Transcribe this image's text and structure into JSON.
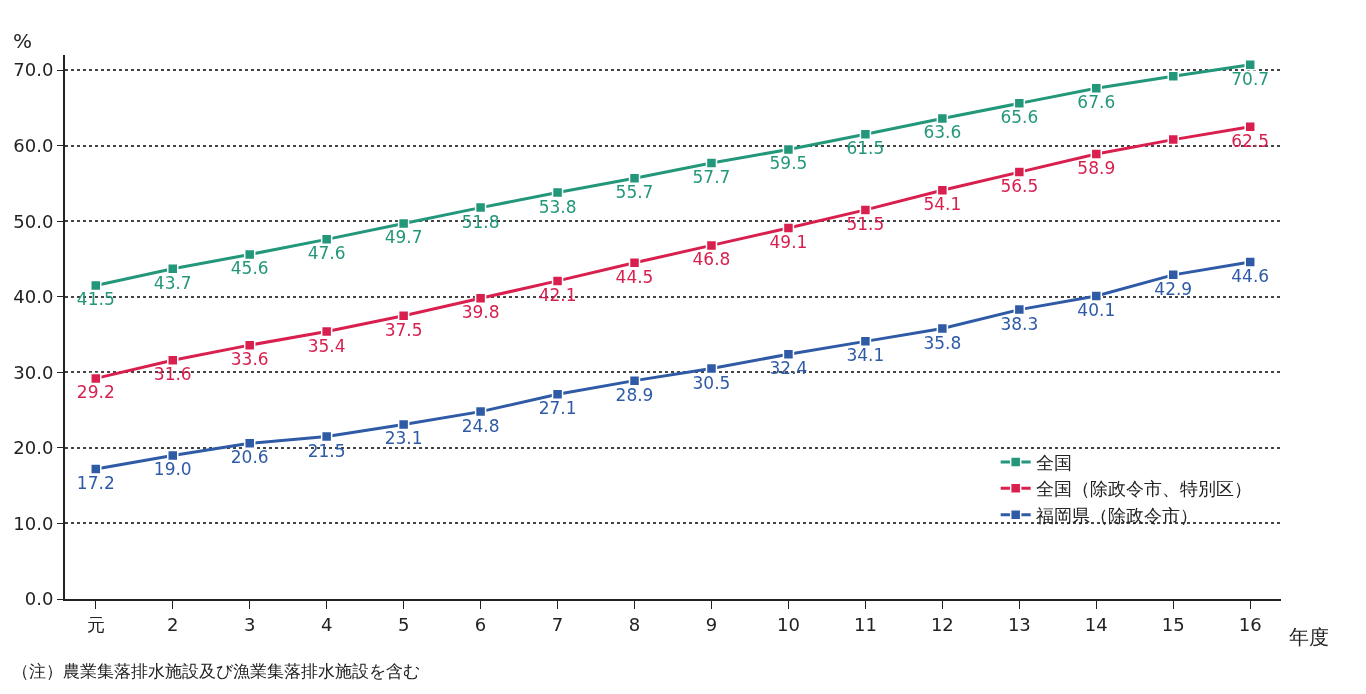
{
  "chart_data": {
    "type": "line",
    "ylabel": "%",
    "xlabel": "年度",
    "categories": [
      "元",
      "2",
      "3",
      "4",
      "5",
      "6",
      "7",
      "8",
      "9",
      "10",
      "11",
      "12",
      "13",
      "14",
      "15",
      "16"
    ],
    "series": [
      {
        "name": "全国",
        "color": "#23977a",
        "values": [
          41.5,
          43.7,
          45.6,
          47.6,
          49.7,
          51.8,
          53.8,
          55.7,
          57.7,
          59.5,
          61.5,
          63.6,
          65.6,
          67.6,
          69.2,
          70.7
        ],
        "value_labels": [
          "41.5",
          "43.7",
          "45.6",
          "47.6",
          "49.7",
          "51.8",
          "53.8",
          "55.7",
          "57.7",
          "59.5",
          "61.5",
          "63.6",
          "65.6",
          "67.6",
          null,
          "70.7"
        ]
      },
      {
        "name": "全国（除政令市、特別区）",
        "color": "#d81f4e",
        "values": [
          29.2,
          31.6,
          33.6,
          35.4,
          37.5,
          39.8,
          42.1,
          44.5,
          46.8,
          49.1,
          51.5,
          54.1,
          56.5,
          58.9,
          60.8,
          62.5
        ],
        "value_labels": [
          "29.2",
          "31.6",
          "33.6",
          "35.4",
          "37.5",
          "39.8",
          "42.1",
          "44.5",
          "46.8",
          "49.1",
          "51.5",
          "54.1",
          "56.5",
          "58.9",
          null,
          "62.5"
        ]
      },
      {
        "name": "福岡県（除政令市）",
        "color": "#2e5aa6",
        "values": [
          17.2,
          19.0,
          20.6,
          21.5,
          23.1,
          24.8,
          27.1,
          28.9,
          30.5,
          32.4,
          34.1,
          35.8,
          38.3,
          40.1,
          42.9,
          44.6
        ],
        "value_labels": [
          "17.2",
          "19.0",
          "20.6",
          "21.5",
          "23.1",
          "24.8",
          "27.1",
          "28.9",
          "30.5",
          "32.4",
          "34.1",
          "35.8",
          "38.3",
          "40.1",
          "42.9",
          "44.6"
        ]
      }
    ],
    "ylim": [
      0,
      72
    ],
    "yticks": [
      {
        "value": 0,
        "label": "0.0"
      },
      {
        "value": 10,
        "label": "10.0"
      },
      {
        "value": 20,
        "label": "20.0"
      },
      {
        "value": 30,
        "label": "30.0"
      },
      {
        "value": 40,
        "label": "40.0"
      },
      {
        "value": 50,
        "label": "50.0"
      },
      {
        "value": 60,
        "label": "60.0"
      },
      {
        "value": 70,
        "label": "70.0"
      }
    ],
    "grid": "y",
    "legend": "bottom right",
    "marker": "square",
    "line_style": "solid",
    "annotations": [
      "（注）農業集落排水施設及び漁業集落排水施設を含む"
    ]
  }
}
